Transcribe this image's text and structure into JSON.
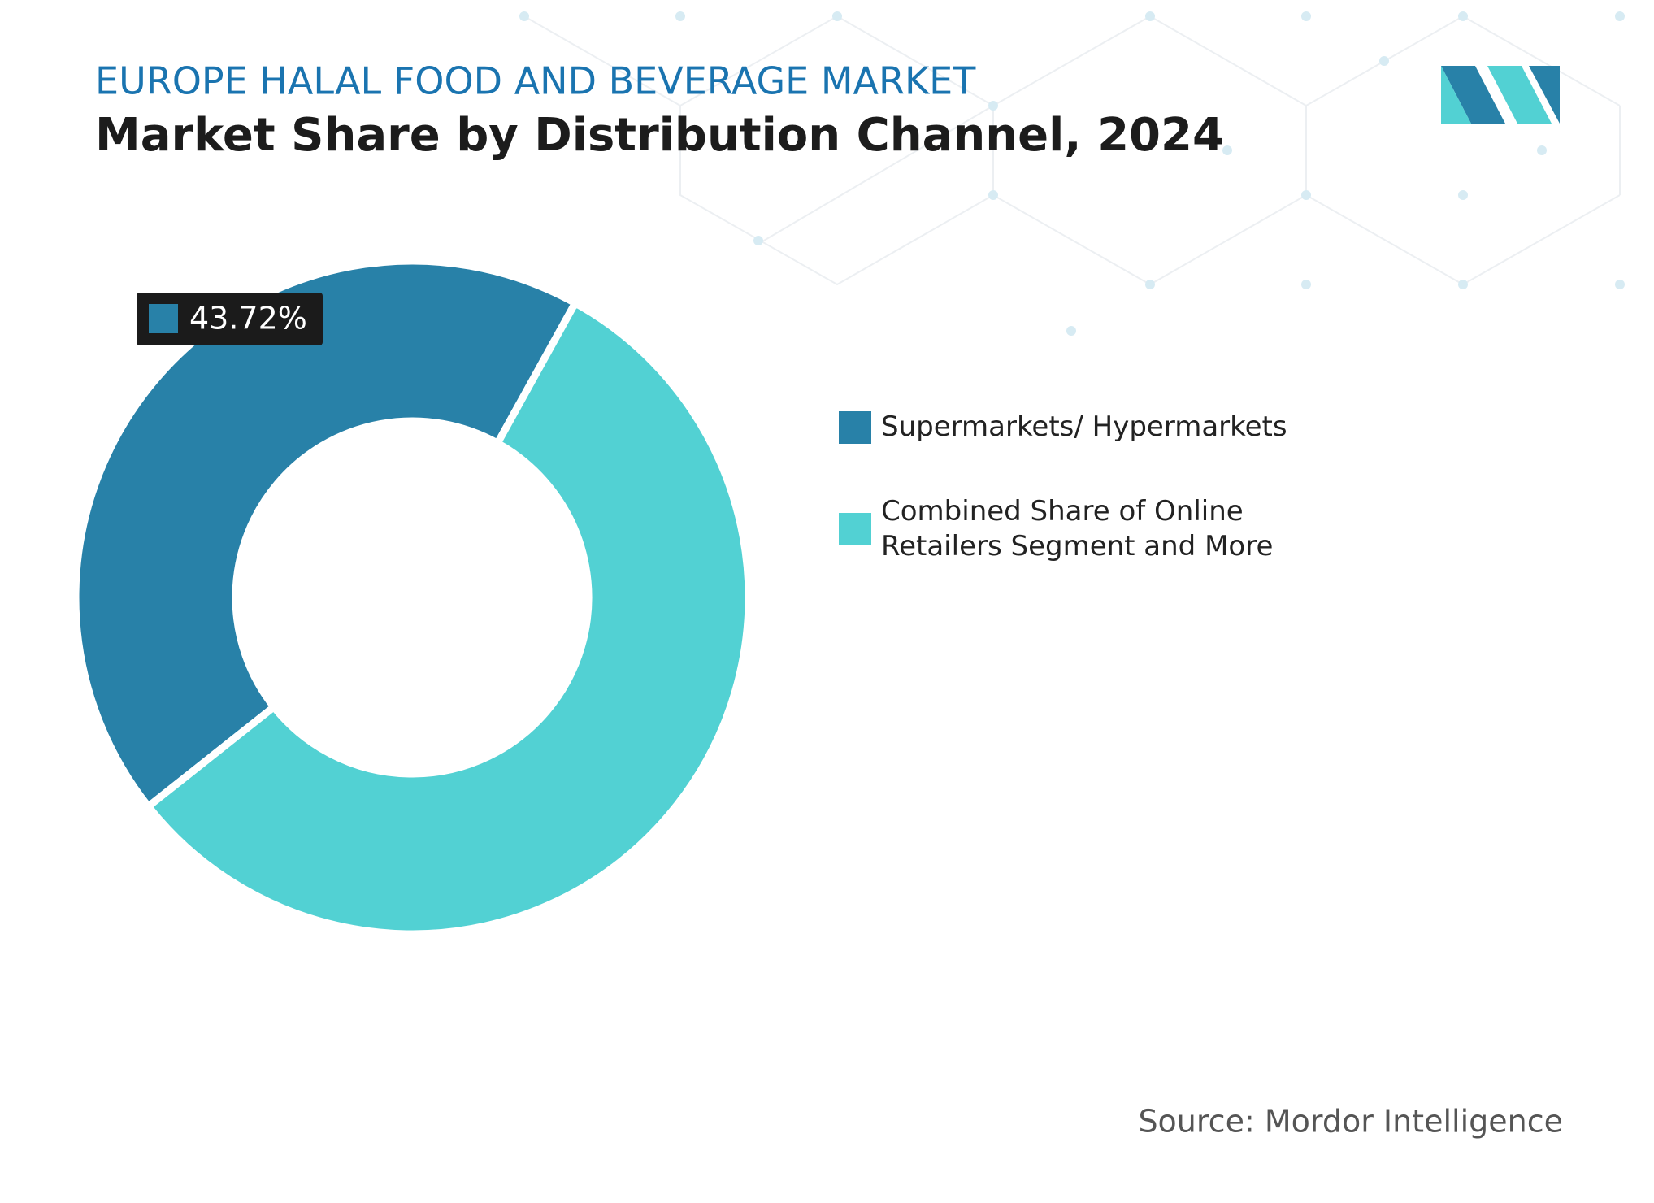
{
  "chart_data": {
    "type": "donut",
    "subtitle": "EUROPE HALAL FOOD AND BEVERAGE MARKET",
    "title": "Market Share by Distribution Channel, 2024",
    "categories": [
      "Supermarkets/ Hypermarkets",
      "Combined Share of Online Retailers Segment and More"
    ],
    "values": [
      43.72,
      56.28
    ],
    "value_labels": [
      "43.72%",
      null
    ],
    "colors": [
      "#2881a8",
      "#52d1d3"
    ],
    "source": "Source: Mordor Intelligence"
  }
}
